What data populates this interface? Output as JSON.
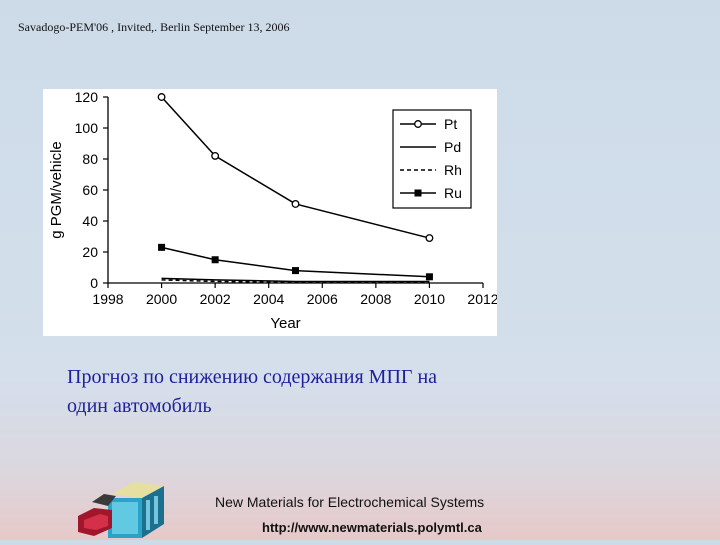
{
  "header": {
    "text": "Savadogo-PEM'06 , Invited,. Berlin September 13,  2006"
  },
  "chart_data": {
    "type": "line",
    "xlabel": "Year",
    "ylabel": "g PGM/vehicle",
    "xlim": [
      1998,
      2012
    ],
    "ylim": [
      0,
      120
    ],
    "x_ticks": [
      "1998",
      "2000",
      "2002",
      "2004",
      "2006",
      "2008",
      "2010",
      "2012"
    ],
    "y_ticks": [
      "0",
      "20",
      "40",
      "60",
      "80",
      "100",
      "120"
    ],
    "legend_position": "top-right",
    "series": [
      {
        "name": "Pt",
        "style": "solid",
        "marker": "circle-open",
        "x": [
          2000,
          2002,
          2005,
          2010
        ],
        "y": [
          120,
          82,
          51,
          29
        ]
      },
      {
        "name": "Pd",
        "style": "solid",
        "marker": "none",
        "x": [
          2000,
          2002,
          2005,
          2010
        ],
        "y": [
          3,
          2,
          1,
          1
        ]
      },
      {
        "name": "Rh",
        "style": "dashed",
        "marker": "none",
        "x": [
          2000,
          2002,
          2005,
          2010
        ],
        "y": [
          2,
          1,
          0.5,
          0.5
        ]
      },
      {
        "name": "Ru",
        "style": "solid",
        "marker": "square-filled",
        "x": [
          2000,
          2002,
          2005,
          2010
        ],
        "y": [
          23,
          15,
          8,
          4
        ]
      }
    ]
  },
  "caption": {
    "line1": "Прогноз по снижению содержания МПГ на",
    "line2": "один автомобиль"
  },
  "footer": {
    "title": "New Materials for Electrochemical Systems",
    "url": "http://www.newmaterials.polymtl.ca"
  }
}
